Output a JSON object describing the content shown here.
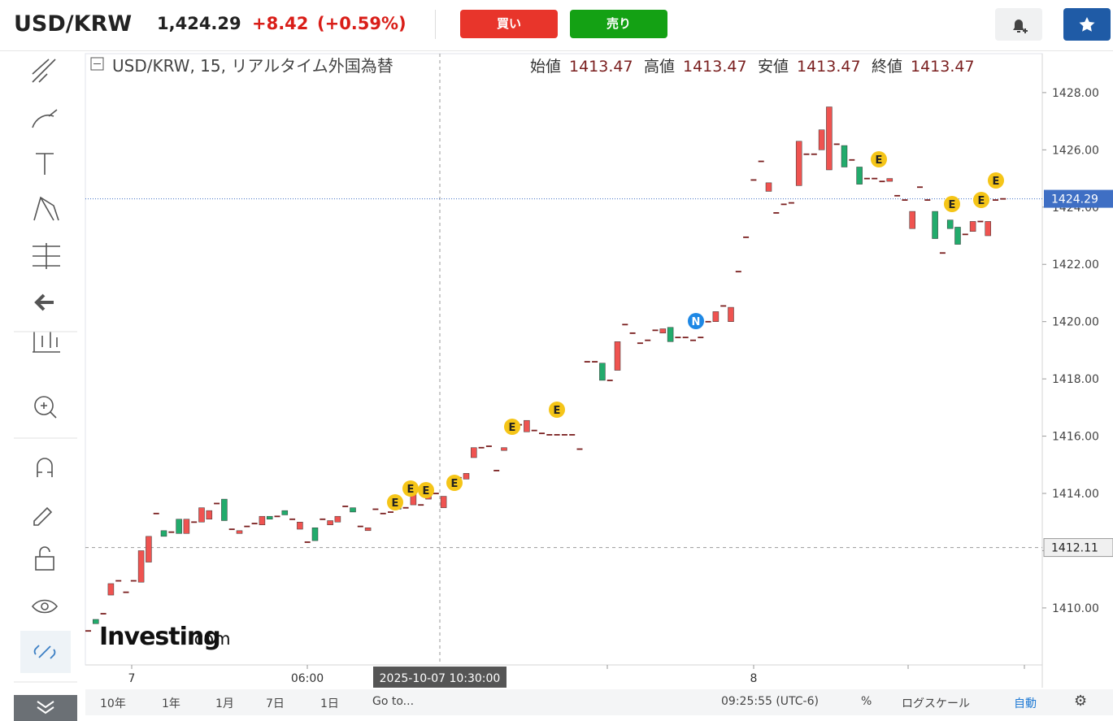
{
  "header": {
    "symbol": "USD/KRW",
    "price": "1,424.29",
    "change": "+8.42",
    "change_pct": "(+0.59%)",
    "buy": "買い",
    "sell": "売り"
  },
  "chart_data": {
    "type": "candlestick",
    "title": "USD/KRW, 15, リアルタイム外国為替",
    "ohlc_labels": [
      "始値",
      "高値",
      "安値",
      "終値"
    ],
    "ohlc_values": [
      "1413.47",
      "1413.47",
      "1413.47",
      "1413.47"
    ],
    "up_color": "#ef5350",
    "down_color": "#22ab6c",
    "flat_color": "#7a1f1f",
    "open": [
      1409.2,
      1409.6,
      1409.8,
      1410.45,
      1410.95,
      1410.55,
      1410.95,
      1410.9,
      1411.6,
      1413.3,
      1412.7,
      1412.65,
      1413.1,
      1412.6,
      1413.0,
      1413.0,
      1413.1,
      1413.65,
      1413.8,
      1412.75,
      1412.6,
      1412.85,
      1412.95,
      1412.9,
      1413.2,
      1413.2,
      1413.4,
      1413.1,
      1412.75,
      1412.3,
      1412.8,
      1413.1,
      1412.9,
      1413.0,
      1413.55,
      1413.5,
      1412.85,
      1412.7,
      1413.45,
      1413.3,
      1413.35,
      1413.6,
      1413.5,
      1413.6,
      1413.6,
      1413.8,
      1414.0,
      1413.5,
      1414.35,
      1414.55,
      1414.5,
      1415.25,
      1415.6,
      1415.6,
      1414.8,
      1415.5,
      1416.1,
      1416.4,
      1416.15,
      1416.2,
      1416.1,
      1416.05,
      1416.05,
      1416.05,
      1416.05,
      1415.55,
      1418.6,
      1418.6,
      1418.55,
      1417.95,
      1418.3,
      1419.9,
      1419.6,
      1419.25,
      1419.35,
      1419.7,
      1419.6,
      1419.8,
      1419.45,
      1419.45,
      1419.35,
      1419.45,
      1420.0,
      1420.0,
      1420.55,
      1420.0,
      1421.75,
      1422.95,
      1424.95,
      1425.6,
      1424.55,
      1423.8,
      1424.1,
      1424.15,
      1424.75,
      1425.85,
      1425.85,
      1426.0,
      1425.3,
      1426.2,
      1426.15,
      1425.65,
      1425.4,
      1425.0,
      1425.0,
      1424.9,
      1424.9,
      1424.4,
      1424.25,
      1423.25,
      1424.7,
      1424.25,
      1423.85,
      1422.4,
      1423.55,
      1423.3,
      1423.05,
      1423.15,
      1423.5,
      1423.0,
      1424.25,
      1424.29
    ],
    "close": [
      1409.2,
      1409.45,
      1409.8,
      1410.85,
      1410.95,
      1410.55,
      1410.95,
      1412.0,
      1412.5,
      1413.3,
      1412.5,
      1412.65,
      1412.6,
      1413.1,
      1413.0,
      1413.5,
      1413.4,
      1413.65,
      1413.05,
      1412.75,
      1412.7,
      1412.85,
      1412.95,
      1413.2,
      1413.1,
      1413.2,
      1413.25,
      1413.1,
      1413.0,
      1412.3,
      1412.35,
      1413.1,
      1413.05,
      1413.2,
      1413.55,
      1413.35,
      1412.85,
      1412.8,
      1413.45,
      1413.3,
      1413.35,
      1413.45,
      1413.5,
      1414.05,
      1413.6,
      1413.95,
      1414.0,
      1413.9,
      1414.35,
      1414.55,
      1414.7,
      1415.6,
      1415.6,
      1415.65,
      1414.8,
      1415.6,
      1416.1,
      1416.4,
      1416.55,
      1416.2,
      1416.1,
      1416.05,
      1416.05,
      1416.05,
      1416.05,
      1415.55,
      1418.6,
      1418.6,
      1417.95,
      1417.95,
      1419.3,
      1419.9,
      1419.6,
      1419.2,
      1419.35,
      1419.7,
      1419.75,
      1419.3,
      1419.45,
      1419.4,
      1419.35,
      1419.45,
      1420.0,
      1420.35,
      1420.55,
      1420.5,
      1421.75,
      1422.95,
      1424.95,
      1425.6,
      1424.85,
      1423.8,
      1424.05,
      1424.15,
      1426.3,
      1425.85,
      1425.85,
      1426.7,
      1427.5,
      1426.2,
      1425.4,
      1425.65,
      1424.8,
      1425.0,
      1425.0,
      1424.9,
      1425.0,
      1424.4,
      1424.25,
      1423.85,
      1424.7,
      1424.25,
      1422.9,
      1422.4,
      1423.25,
      1422.7,
      1423.05,
      1423.5,
      1423.5,
      1423.5,
      1424.25,
      1424.29
    ],
    "ylim": [
      1408.01,
      1429.36
    ],
    "yticks": [
      {
        "value": 1410,
        "label": "1410.00"
      },
      {
        "value": 1412,
        "label": "1412.00"
      },
      {
        "value": 1414,
        "label": "1414.00"
      },
      {
        "value": 1416,
        "label": "1416.00"
      },
      {
        "value": 1418,
        "label": "1418.00"
      },
      {
        "value": 1420,
        "label": "1420.00"
      },
      {
        "value": 1422,
        "label": "1422.00"
      },
      {
        "value": 1424,
        "label": "1424.00"
      },
      {
        "value": 1426,
        "label": "1426.00"
      },
      {
        "value": 1428,
        "label": "1428.00"
      }
    ],
    "x_labels": [
      "7",
      "06:00",
      "8"
    ],
    "crosshair_time": "2025-10-07 10:30:00",
    "crosshair_price": 1412.11,
    "last_price": 1424.29,
    "events": [
      "E",
      "E",
      "E",
      "E",
      "E",
      "E",
      "N",
      "E",
      "E",
      "E",
      "E"
    ]
  },
  "logo": {
    "name": "Investing",
    "suffix": ".com"
  },
  "bottom_bar": {
    "ranges": [
      "10年",
      "1年",
      "1月",
      "7日",
      "1日"
    ],
    "goto": "Go to...",
    "time": "09:25:55 (UTC-6)",
    "percent": "%",
    "log": "ログスケール",
    "auto": "自動"
  }
}
